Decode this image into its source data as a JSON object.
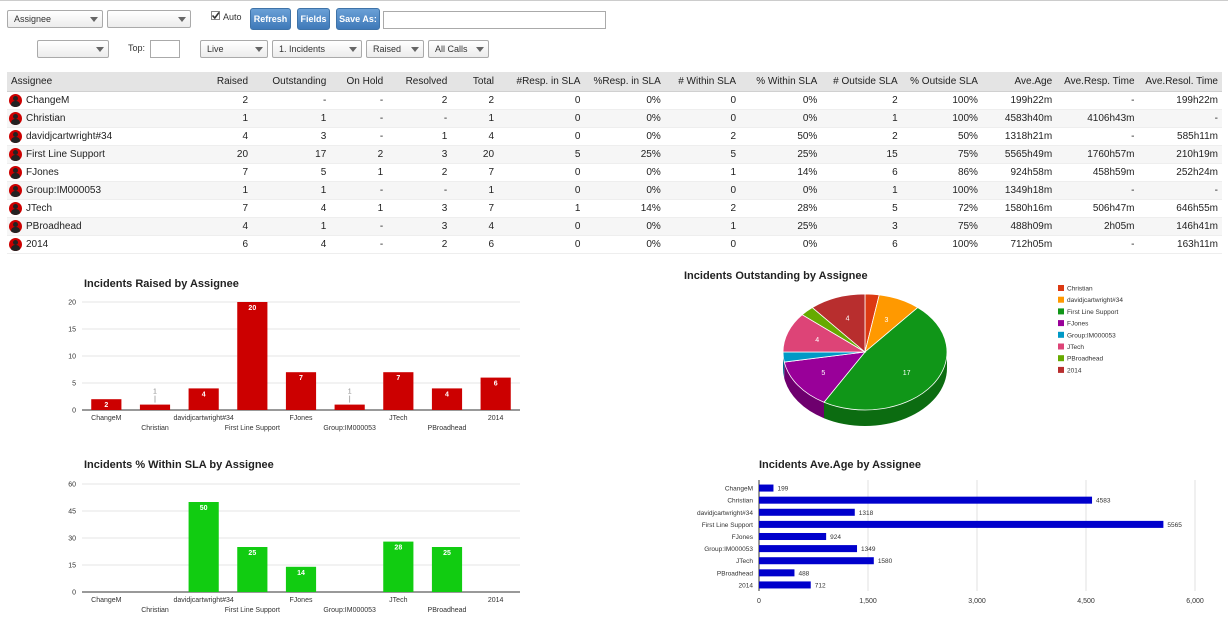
{
  "toolbar": {
    "group_by": "Assignee",
    "group_by_2": "",
    "auto_label": "Auto",
    "auto_checked": true,
    "refresh_label": "Refresh",
    "fields_label": "Fields",
    "save_as_label": "Save As:",
    "save_as_value": ""
  },
  "filters": {
    "filter_1": "",
    "top_label": "Top:",
    "top_value": "",
    "status": "Live",
    "type": "1. Incidents",
    "date_field": "Raised",
    "calls": "All Calls"
  },
  "table": {
    "columns": [
      "Assignee",
      "Raised",
      "Outstanding",
      "On Hold",
      "Resolved",
      "Total",
      "#Resp. in SLA",
      "%Resp. in SLA",
      "# Within SLA",
      "% Within SLA",
      "# Outside SLA",
      "% Outside SLA",
      "Ave.Age",
      "Ave.Resp. Time",
      "Ave.Resol. Time"
    ],
    "rows": [
      [
        "ChangeM",
        "2",
        "-",
        "-",
        "2",
        "2",
        "0",
        "0%",
        "0",
        "0%",
        "2",
        "100%",
        "199h22m",
        "-",
        "199h22m"
      ],
      [
        "Christian",
        "1",
        "1",
        "-",
        "-",
        "1",
        "0",
        "0%",
        "0",
        "0%",
        "1",
        "100%",
        "4583h40m",
        "4106h43m",
        "-"
      ],
      [
        "davidjcartwright#34",
        "4",
        "3",
        "-",
        "1",
        "4",
        "0",
        "0%",
        "2",
        "50%",
        "2",
        "50%",
        "1318h21m",
        "-",
        "585h11m"
      ],
      [
        "First Line Support",
        "20",
        "17",
        "2",
        "3",
        "20",
        "5",
        "25%",
        "5",
        "25%",
        "15",
        "75%",
        "5565h49m",
        "1760h57m",
        "210h19m"
      ],
      [
        "FJones",
        "7",
        "5",
        "1",
        "2",
        "7",
        "0",
        "0%",
        "1",
        "14%",
        "6",
        "86%",
        "924h58m",
        "458h59m",
        "252h24m"
      ],
      [
        "Group:IM000053",
        "1",
        "1",
        "-",
        "-",
        "1",
        "0",
        "0%",
        "0",
        "0%",
        "1",
        "100%",
        "1349h18m",
        "-",
        "-"
      ],
      [
        "JTech",
        "7",
        "4",
        "1",
        "3",
        "7",
        "1",
        "14%",
        "2",
        "28%",
        "5",
        "72%",
        "1580h16m",
        "506h47m",
        "646h55m"
      ],
      [
        "PBroadhead",
        "4",
        "1",
        "-",
        "3",
        "4",
        "0",
        "0%",
        "1",
        "25%",
        "3",
        "75%",
        "488h09m",
        "2h05m",
        "146h41m"
      ],
      [
        "2014",
        "6",
        "4",
        "-",
        "2",
        "6",
        "0",
        "0%",
        "0",
        "0%",
        "6",
        "100%",
        "712h05m",
        "-",
        "163h11m"
      ]
    ]
  },
  "chart_data": [
    {
      "type": "bar",
      "title": "Incidents Raised by Assignee",
      "categories": [
        "ChangeM",
        "Christian",
        "davidjcartwright#34",
        "First Line Support",
        "FJones",
        "Group:IM000053",
        "JTech",
        "PBroadhead",
        "2014"
      ],
      "values": [
        2,
        1,
        4,
        20,
        7,
        1,
        7,
        4,
        6
      ],
      "ylim": [
        0,
        20
      ],
      "yticks": [
        0,
        5,
        10,
        15,
        20
      ],
      "color": "#cc0000"
    },
    {
      "type": "pie",
      "title": "Incidents Outstanding by Assignee",
      "categories": [
        "Christian",
        "davidjcartwright#34",
        "First Line Support",
        "FJones",
        "Group:IM000053",
        "JTech",
        "PBroadhead",
        "2014"
      ],
      "values": [
        1,
        3,
        17,
        5,
        1,
        4,
        1,
        4
      ],
      "colors": [
        "#dc3912",
        "#ff9900",
        "#109618",
        "#990099",
        "#0099c6",
        "#dd4477",
        "#66aa00",
        "#b82e2e"
      ],
      "legend": "right"
    },
    {
      "type": "bar",
      "title": "Incidents % Within SLA by Assignee",
      "categories": [
        "ChangeM",
        "Christian",
        "davidjcartwright#34",
        "First Line Support",
        "FJones",
        "Group:IM000053",
        "JTech",
        "PBroadhead",
        "2014"
      ],
      "values": [
        0,
        0,
        50,
        25,
        14,
        0,
        28,
        25,
        0
      ],
      "ylim": [
        0,
        60
      ],
      "yticks": [
        0,
        15,
        30,
        45,
        60
      ],
      "color": "#11cc11"
    },
    {
      "type": "bar",
      "orientation": "horizontal",
      "title": "Incidents Ave.Age by Assignee",
      "categories": [
        "ChangeM",
        "Christian",
        "davidjcartwright#34",
        "First Line Support",
        "FJones",
        "Group:IM000053",
        "JTech",
        "PBroadhead",
        "2014"
      ],
      "values": [
        199,
        4583,
        1318,
        5565,
        924,
        1349,
        1580,
        488,
        712
      ],
      "xlim": [
        0,
        6000
      ],
      "xticks": [
        0,
        1500,
        3000,
        4500,
        6000
      ],
      "xtick_labels": [
        "0",
        "1,500",
        "3,000",
        "4,500",
        "6,000"
      ],
      "color": "#0000cc"
    }
  ]
}
